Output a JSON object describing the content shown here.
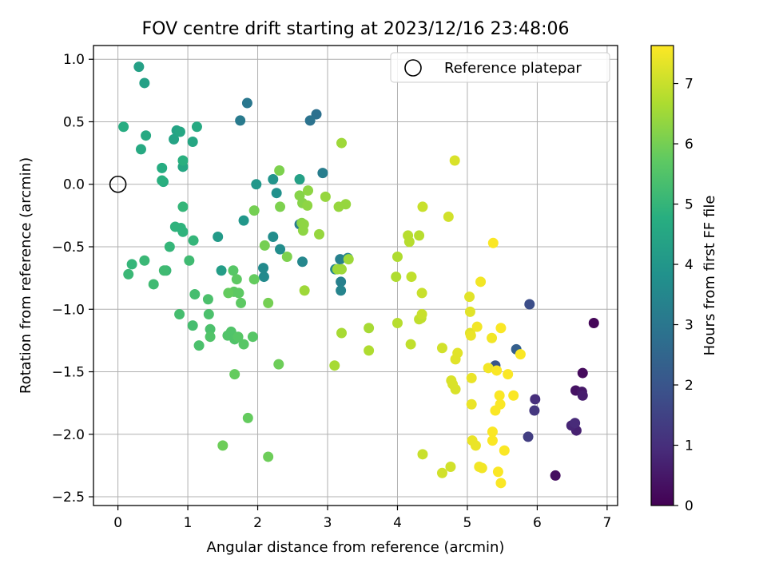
{
  "chart_data": {
    "type": "scatter",
    "title": "FOV centre drift starting at 2023/12/16 23:48:06",
    "xlabel": "Angular distance from reference (arcmin)",
    "ylabel": "Rotation from reference (arcmin)",
    "xlim": [
      -0.35,
      7.15
    ],
    "ylim": [
      -2.57,
      1.11
    ],
    "xticks": [
      0,
      1,
      2,
      3,
      4,
      5,
      6,
      7
    ],
    "xtick_labels": [
      "0",
      "1",
      "2",
      "3",
      "4",
      "5",
      "6",
      "7"
    ],
    "yticks": [
      -2.5,
      -2.0,
      -1.5,
      -1.0,
      -0.5,
      0.0,
      0.5,
      1.0
    ],
    "ytick_labels": [
      "−2.5",
      "−2.0",
      "−1.5",
      "−1.0",
      "−0.5",
      "0.0",
      "0.5",
      "1.0"
    ],
    "grid": true,
    "legend": {
      "position": "top-right",
      "entries": [
        "Reference platepar"
      ]
    },
    "reference_point": {
      "x": 0.0,
      "y": 0.0
    },
    "colorbar": {
      "label": "Hours from first FF file",
      "range": [
        0,
        7.63
      ],
      "ticks": [
        0,
        1,
        2,
        3,
        4,
        5,
        6,
        7
      ],
      "tick_labels": [
        "0",
        "1",
        "2",
        "3",
        "4",
        "5",
        "6",
        "7"
      ],
      "colormap": "viridis"
    },
    "points": [
      [
        6.81,
        -1.11,
        0.1
      ],
      [
        6.65,
        -1.51,
        0.2
      ],
      [
        6.26,
        -2.33,
        0.3
      ],
      [
        6.55,
        -1.65,
        0.4
      ],
      [
        6.64,
        -1.66,
        0.5
      ],
      [
        6.65,
        -1.69,
        0.6
      ],
      [
        6.56,
        -1.97,
        0.7
      ],
      [
        6.49,
        -1.93,
        0.8
      ],
      [
        6.54,
        -1.91,
        0.9
      ],
      [
        5.97,
        -1.72,
        1.0
      ],
      [
        5.96,
        -1.81,
        1.2
      ],
      [
        5.87,
        -2.02,
        1.4
      ],
      [
        5.89,
        -0.96,
        1.8
      ],
      [
        5.4,
        -1.45,
        2.0
      ],
      [
        5.7,
        -1.32,
        2.3
      ],
      [
        2.84,
        0.56,
        2.8
      ],
      [
        2.75,
        0.51,
        2.9
      ],
      [
        1.85,
        0.65,
        3.0
      ],
      [
        1.75,
        0.51,
        3.1
      ],
      [
        2.93,
        0.09,
        3.2
      ],
      [
        2.6,
        -0.32,
        3.2
      ],
      [
        3.18,
        -0.6,
        3.3
      ],
      [
        3.19,
        -0.78,
        3.3
      ],
      [
        3.19,
        -0.85,
        3.4
      ],
      [
        3.29,
        -0.59,
        3.4
      ],
      [
        3.11,
        -0.68,
        3.5
      ],
      [
        2.64,
        -0.62,
        3.5
      ],
      [
        2.09,
        -0.74,
        3.6
      ],
      [
        2.08,
        -0.67,
        3.6
      ],
      [
        2.22,
        -0.42,
        3.7
      ],
      [
        2.32,
        -0.52,
        3.7
      ],
      [
        2.27,
        -0.07,
        3.8
      ],
      [
        2.22,
        0.04,
        3.9
      ],
      [
        1.98,
        0.0,
        4.0
      ],
      [
        1.8,
        -0.29,
        4.0
      ],
      [
        1.43,
        -0.42,
        4.1
      ],
      [
        1.48,
        -0.69,
        4.2
      ],
      [
        2.6,
        0.04,
        4.3
      ],
      [
        0.3,
        0.94,
        4.3
      ],
      [
        0.38,
        0.81,
        4.3
      ],
      [
        0.8,
        0.36,
        4.4
      ],
      [
        0.84,
        0.43,
        4.4
      ],
      [
        0.89,
        0.42,
        4.5
      ],
      [
        0.93,
        0.14,
        4.5
      ],
      [
        1.07,
        0.34,
        4.5
      ],
      [
        1.13,
        0.46,
        4.6
      ],
      [
        0.33,
        0.28,
        4.6
      ],
      [
        0.4,
        0.39,
        4.6
      ],
      [
        0.08,
        0.46,
        4.7
      ],
      [
        0.65,
        0.02,
        4.7
      ],
      [
        0.63,
        0.13,
        4.7
      ],
      [
        0.63,
        0.03,
        4.8
      ],
      [
        0.93,
        0.19,
        4.8
      ],
      [
        0.9,
        -0.35,
        4.9
      ],
      [
        0.82,
        -0.34,
        4.9
      ],
      [
        0.93,
        -0.38,
        4.9
      ],
      [
        0.93,
        -0.18,
        5.0
      ],
      [
        0.74,
        -0.5,
        5.0
      ],
      [
        1.08,
        -0.45,
        5.0
      ],
      [
        0.2,
        -0.64,
        5.0
      ],
      [
        0.38,
        -0.61,
        5.1
      ],
      [
        0.15,
        -0.72,
        5.1
      ],
      [
        0.69,
        -0.69,
        5.1
      ],
      [
        0.66,
        -0.69,
        5.2
      ],
      [
        0.51,
        -0.8,
        5.2
      ],
      [
        1.02,
        -0.61,
        5.2
      ],
      [
        1.1,
        -0.88,
        5.3
      ],
      [
        0.88,
        -1.04,
        5.3
      ],
      [
        1.07,
        -1.13,
        5.3
      ],
      [
        1.16,
        -1.29,
        5.4
      ],
      [
        1.29,
        -0.92,
        5.4
      ],
      [
        1.3,
        -1.04,
        5.4
      ],
      [
        1.32,
        -1.16,
        5.4
      ],
      [
        1.32,
        -1.22,
        5.5
      ],
      [
        1.62,
        -1.18,
        5.5
      ],
      [
        1.57,
        -1.21,
        5.5
      ],
      [
        1.67,
        -1.24,
        5.5
      ],
      [
        1.8,
        -1.28,
        5.6
      ],
      [
        1.72,
        -1.22,
        5.6
      ],
      [
        1.93,
        -1.22,
        5.6
      ],
      [
        1.65,
        -0.69,
        5.6
      ],
      [
        1.66,
        -0.86,
        5.7
      ],
      [
        1.7,
        -0.76,
        5.7
      ],
      [
        1.73,
        -0.87,
        5.7
      ],
      [
        1.76,
        -0.95,
        5.7
      ],
      [
        1.95,
        -0.76,
        5.8
      ],
      [
        1.58,
        -0.87,
        5.8
      ],
      [
        1.67,
        -1.52,
        5.8
      ],
      [
        1.86,
        -1.87,
        5.8
      ],
      [
        1.5,
        -2.09,
        5.9
      ],
      [
        2.15,
        -2.18,
        5.9
      ],
      [
        2.3,
        -1.44,
        5.9
      ],
      [
        2.15,
        -0.95,
        6.0
      ],
      [
        1.95,
        -0.21,
        6.0
      ],
      [
        2.1,
        -0.49,
        6.0
      ],
      [
        2.42,
        -0.58,
        6.1
      ],
      [
        2.32,
        -0.18,
        6.1
      ],
      [
        2.31,
        0.11,
        6.1
      ],
      [
        2.6,
        -0.09,
        6.2
      ],
      [
        2.64,
        -0.15,
        6.2
      ],
      [
        2.63,
        -0.31,
        6.2
      ],
      [
        2.65,
        -0.37,
        6.3
      ],
      [
        2.71,
        -0.17,
        6.3
      ],
      [
        2.66,
        -0.32,
        6.3
      ],
      [
        2.72,
        -0.05,
        6.3
      ],
      [
        2.88,
        -0.4,
        6.4
      ],
      [
        2.97,
        -0.1,
        6.4
      ],
      [
        3.16,
        -0.18,
        6.4
      ],
      [
        3.26,
        -0.16,
        6.4
      ],
      [
        3.2,
        0.33,
        6.5
      ],
      [
        3.14,
        -0.68,
        6.5
      ],
      [
        3.2,
        -0.68,
        6.5
      ],
      [
        3.3,
        -0.6,
        6.5
      ],
      [
        2.67,
        -0.85,
        6.5
      ],
      [
        3.1,
        -1.45,
        6.6
      ],
      [
        3.2,
        -1.19,
        6.6
      ],
      [
        3.59,
        -1.15,
        6.6
      ],
      [
        3.59,
        -1.33,
        6.7
      ],
      [
        3.98,
        -0.74,
        6.7
      ],
      [
        4.0,
        -0.58,
        6.7
      ],
      [
        4.0,
        -1.11,
        6.8
      ],
      [
        4.15,
        -0.41,
        6.8
      ],
      [
        4.17,
        -0.46,
        6.8
      ],
      [
        4.31,
        -0.41,
        6.8
      ],
      [
        4.2,
        -0.74,
        6.9
      ],
      [
        4.19,
        -1.28,
        6.9
      ],
      [
        4.31,
        -1.08,
        6.9
      ],
      [
        4.34,
        -1.07,
        6.9
      ],
      [
        4.35,
        -1.04,
        7.0
      ],
      [
        4.35,
        -0.87,
        7.0
      ],
      [
        4.36,
        -0.18,
        7.0
      ],
      [
        4.36,
        -2.16,
        7.0
      ],
      [
        4.64,
        -1.31,
        7.1
      ],
      [
        4.64,
        -2.31,
        7.1
      ],
      [
        4.73,
        -0.26,
        7.1
      ],
      [
        4.76,
        -2.26,
        7.1
      ],
      [
        4.82,
        0.19,
        7.2
      ],
      [
        4.77,
        -1.57,
        7.2
      ],
      [
        4.79,
        -1.6,
        7.2
      ],
      [
        4.83,
        -1.64,
        7.2
      ],
      [
        4.83,
        -1.4,
        7.3
      ],
      [
        4.86,
        -1.35,
        7.3
      ],
      [
        5.03,
        -0.9,
        7.3
      ],
      [
        5.04,
        -1.02,
        7.3
      ],
      [
        5.04,
        -1.19,
        7.3
      ],
      [
        5.05,
        -1.21,
        7.4
      ],
      [
        5.06,
        -1.55,
        7.4
      ],
      [
        5.06,
        -1.76,
        7.4
      ],
      [
        5.07,
        -2.05,
        7.4
      ],
      [
        5.12,
        -2.09,
        7.4
      ],
      [
        5.14,
        -1.14,
        7.5
      ],
      [
        5.19,
        -0.78,
        7.5
      ],
      [
        5.17,
        -2.26,
        7.5
      ],
      [
        5.21,
        -2.27,
        7.5
      ],
      [
        5.3,
        -1.47,
        7.5
      ],
      [
        5.35,
        -1.23,
        7.5
      ],
      [
        5.37,
        -0.47,
        7.6
      ],
      [
        5.36,
        -1.98,
        7.6
      ],
      [
        5.36,
        -2.05,
        7.6
      ],
      [
        5.4,
        -1.81,
        7.6
      ],
      [
        5.42,
        -1.49,
        7.6
      ],
      [
        5.44,
        -2.3,
        7.6
      ],
      [
        5.46,
        -1.69,
        7.6
      ],
      [
        5.48,
        -1.15,
        7.6
      ],
      [
        5.47,
        -1.76,
        7.6
      ],
      [
        5.48,
        -2.39,
        7.6
      ],
      [
        5.53,
        -2.13,
        7.6
      ],
      [
        5.58,
        -1.52,
        7.6
      ],
      [
        5.66,
        -1.69,
        7.6
      ],
      [
        5.76,
        -1.36,
        7.6
      ]
    ]
  }
}
